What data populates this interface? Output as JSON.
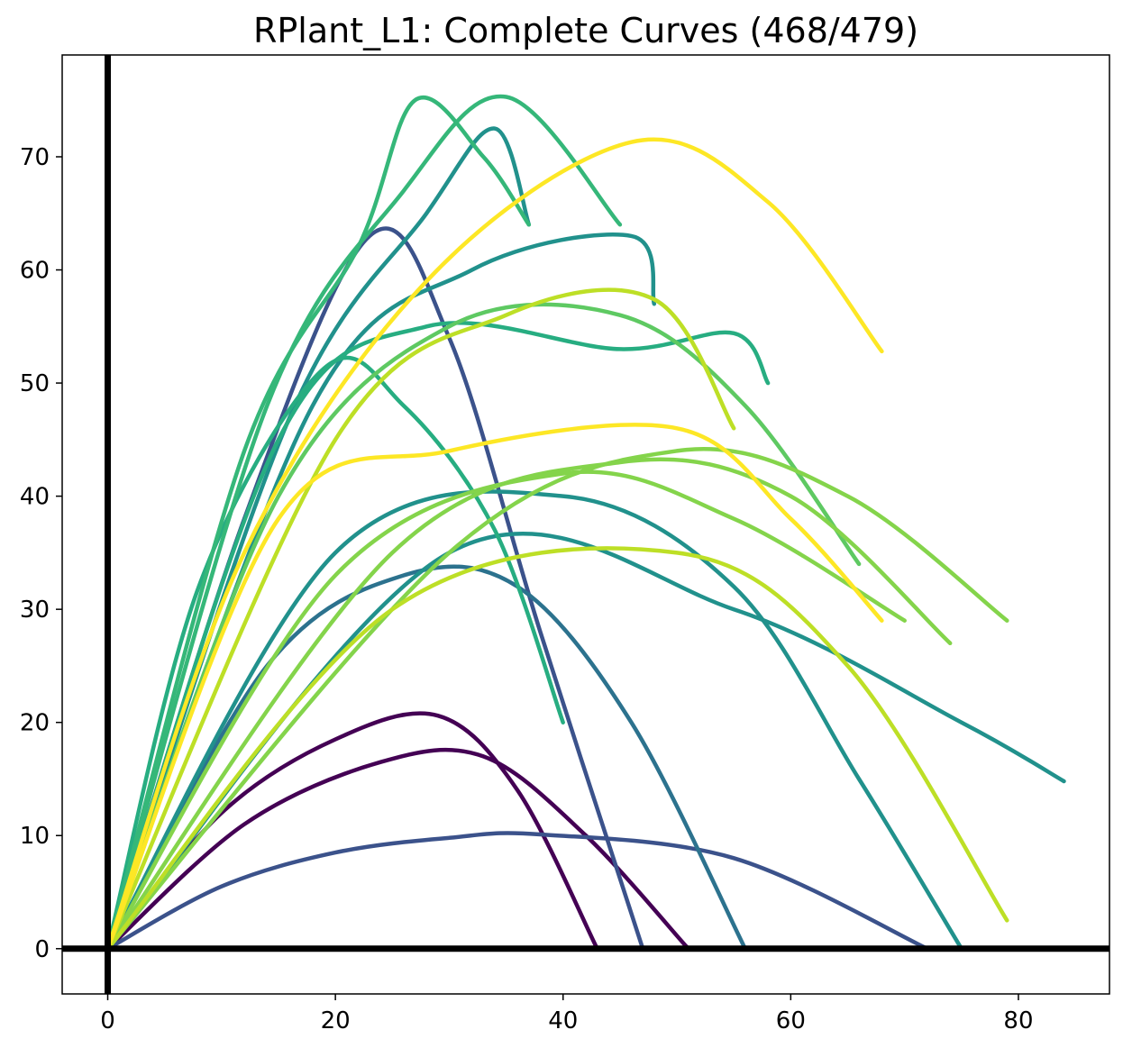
{
  "chart_data": {
    "type": "line",
    "title": "RPlant_L1: Complete Curves (468/479)",
    "xlabel": "",
    "ylabel": "",
    "xlim": [
      -4,
      88
    ],
    "ylim": [
      -4,
      79
    ],
    "x_ticks": [
      0,
      20,
      40,
      60,
      80
    ],
    "y_ticks": [
      0,
      10,
      20,
      30,
      40,
      50,
      60,
      70
    ],
    "x_tick_labels": [
      "0",
      "20",
      "40",
      "60",
      "80"
    ],
    "y_tick_labels": [
      "0",
      "10",
      "20",
      "30",
      "40",
      "50",
      "60",
      "70"
    ],
    "grid": false,
    "legend": "none",
    "reference_lines": {
      "x": 0,
      "y": 0
    },
    "colormap": "viridis",
    "series_total_shown": 468,
    "series_total": 479,
    "representative_series": [
      {
        "color": "#440154",
        "points": [
          [
            0,
            0
          ],
          [
            10,
            12
          ],
          [
            20,
            18.5
          ],
          [
            29,
            20.6
          ],
          [
            36,
            14
          ],
          [
            43,
            0
          ]
        ]
      },
      {
        "color": "#440154",
        "points": [
          [
            0,
            0
          ],
          [
            12,
            11
          ],
          [
            24,
            16.5
          ],
          [
            33,
            17
          ],
          [
            42,
            10
          ],
          [
            51,
            0
          ]
        ]
      },
      {
        "color": "#3b528b",
        "points": [
          [
            0,
            0
          ],
          [
            10,
            5.5
          ],
          [
            20,
            8.5
          ],
          [
            30,
            9.8
          ],
          [
            38,
            10.1
          ],
          [
            55,
            8
          ],
          [
            72,
            0
          ]
        ]
      },
      {
        "color": "#3b528b",
        "points": [
          [
            0,
            0
          ],
          [
            12,
            38
          ],
          [
            23,
            63
          ],
          [
            30,
            54
          ],
          [
            38,
            28
          ],
          [
            47,
            0
          ]
        ]
      },
      {
        "color": "#2c728e",
        "points": [
          [
            0,
            0
          ],
          [
            14,
            25
          ],
          [
            26,
            33
          ],
          [
            36,
            32
          ],
          [
            46,
            20
          ],
          [
            56,
            0
          ]
        ]
      },
      {
        "color": "#21918c",
        "points": [
          [
            0,
            0
          ],
          [
            16,
            47
          ],
          [
            28,
            65
          ],
          [
            34,
            72.5
          ],
          [
            37,
            64
          ]
        ]
      },
      {
        "color": "#21918c",
        "points": [
          [
            0,
            0
          ],
          [
            18,
            48
          ],
          [
            32,
            60
          ],
          [
            46,
            63
          ],
          [
            48,
            57
          ]
        ]
      },
      {
        "color": "#21918c",
        "points": [
          [
            0,
            0
          ],
          [
            20,
            35
          ],
          [
            40,
            40
          ],
          [
            55,
            32
          ],
          [
            66,
            15
          ],
          [
            75,
            0
          ]
        ]
      },
      {
        "color": "#21918c",
        "points": [
          [
            0,
            0
          ],
          [
            30,
            35
          ],
          [
            55,
            30
          ],
          [
            75,
            20
          ],
          [
            84,
            14.8
          ]
        ]
      },
      {
        "color": "#27ad81",
        "points": [
          [
            0,
            0
          ],
          [
            8,
            32
          ],
          [
            19,
            51.3
          ],
          [
            26,
            48
          ],
          [
            34,
            37
          ],
          [
            40,
            20
          ]
        ]
      },
      {
        "color": "#27ad81",
        "points": [
          [
            0,
            0
          ],
          [
            15,
            45
          ],
          [
            28,
            55
          ],
          [
            45,
            53
          ],
          [
            55,
            54.4
          ],
          [
            58,
            50
          ]
        ]
      },
      {
        "color": "#35b779",
        "points": [
          [
            0,
            0
          ],
          [
            12,
            44
          ],
          [
            22,
            62
          ],
          [
            27,
            75
          ],
          [
            33,
            70
          ],
          [
            37,
            64
          ]
        ]
      },
      {
        "color": "#35b779",
        "points": [
          [
            0,
            0
          ],
          [
            14,
            48
          ],
          [
            26,
            67
          ],
          [
            35,
            75.3
          ],
          [
            45,
            64
          ]
        ]
      },
      {
        "color": "#5ec962",
        "points": [
          [
            0,
            0
          ],
          [
            15,
            40
          ],
          [
            30,
            55
          ],
          [
            45,
            56
          ],
          [
            56,
            48
          ],
          [
            66,
            34
          ]
        ]
      },
      {
        "color": "#84d44b",
        "points": [
          [
            0,
            0
          ],
          [
            20,
            33
          ],
          [
            40,
            42
          ],
          [
            55,
            38
          ],
          [
            70,
            29
          ]
        ]
      },
      {
        "color": "#84d44b",
        "points": [
          [
            0,
            0
          ],
          [
            25,
            35
          ],
          [
            45,
            43
          ],
          [
            60,
            40
          ],
          [
            74,
            27
          ]
        ]
      },
      {
        "color": "#84d44b",
        "points": [
          [
            0,
            0
          ],
          [
            30,
            35
          ],
          [
            50,
            44
          ],
          [
            65,
            40
          ],
          [
            79,
            29
          ]
        ]
      },
      {
        "color": "#bddf26",
        "points": [
          [
            0,
            0
          ],
          [
            25,
            30
          ],
          [
            50,
            35
          ],
          [
            65,
            25
          ],
          [
            79,
            2.5
          ]
        ]
      },
      {
        "color": "#bddf26",
        "points": [
          [
            0,
            0
          ],
          [
            20,
            45
          ],
          [
            35,
            56
          ],
          [
            48,
            57.4
          ],
          [
            55,
            46
          ]
        ]
      },
      {
        "color": "#fde725",
        "points": [
          [
            0,
            0
          ],
          [
            12,
            35
          ],
          [
            28,
            59
          ],
          [
            46,
            71.3
          ],
          [
            58,
            66
          ],
          [
            68,
            52.8
          ]
        ]
      },
      {
        "color": "#fde725",
        "points": [
          [
            0,
            0
          ],
          [
            15,
            38
          ],
          [
            30,
            44
          ],
          [
            50,
            46
          ],
          [
            60,
            38
          ],
          [
            68,
            29
          ]
        ]
      }
    ]
  }
}
